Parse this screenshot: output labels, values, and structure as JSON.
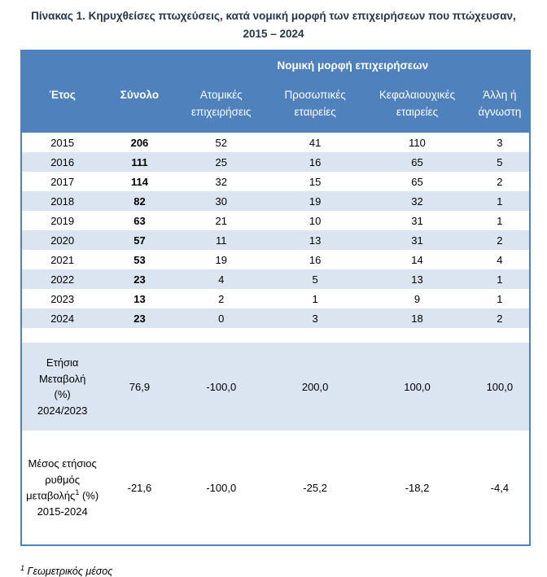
{
  "title": {
    "line1": "Πίνακας 1. Κηρυχθείσες πτωχεύσεις, κατά νομική μορφή των επιχειρήσεων που πτώχευσαν,",
    "line2": "2015 – 2024"
  },
  "colors": {
    "header_blue": "#4f81bd",
    "band_light_blue": "#dbe5f1",
    "border_blue": "#4f81bd",
    "title_text": "#253746"
  },
  "table": {
    "group_header": "Νομική μορφή επιχειρήσεων",
    "columns": [
      "Έτος",
      "Σύνολο",
      "Ατομικές επιχειρήσεις",
      "Προσωπικές εταιρείες",
      "Κεφαλαιουχικές εταιρείες",
      "Άλλη ή άγνωστη"
    ],
    "rows": [
      [
        "2015",
        "206",
        "52",
        "41",
        "110",
        "3"
      ],
      [
        "2016",
        "111",
        "25",
        "16",
        "65",
        "5"
      ],
      [
        "2017",
        "114",
        "32",
        "15",
        "65",
        "2"
      ],
      [
        "2018",
        "82",
        "30",
        "19",
        "32",
        "1"
      ],
      [
        "2019",
        "63",
        "21",
        "10",
        "31",
        "1"
      ],
      [
        "2020",
        "57",
        "11",
        "13",
        "31",
        "2"
      ],
      [
        "2021",
        "53",
        "19",
        "16",
        "14",
        "4"
      ],
      [
        "2022",
        "23",
        "4",
        "5",
        "13",
        "1"
      ],
      [
        "2023",
        "13",
        "2",
        "1",
        "9",
        "1"
      ],
      [
        "2024",
        "23",
        "0",
        "3",
        "18",
        "2"
      ]
    ],
    "annual_change": {
      "label_lines": [
        "Ετήσια",
        "Μεταβολή",
        "(%)",
        "2024/2023"
      ],
      "values": [
        "76,9",
        "-100,0",
        "200,0",
        "100,0",
        "100,0"
      ]
    },
    "avg_change": {
      "label_line1": "Μέσος ετήσιος",
      "label_line2": "ρυθμός",
      "label_line3_pre": "μεταβολής",
      "label_line3_sup": "1",
      "label_line3_post": " (%)",
      "label_line4": "2015-2024",
      "values": [
        "-21,6",
        "-100,0",
        "-25,2",
        "-18,2",
        "-4,4"
      ]
    }
  },
  "footnote": {
    "sup": "1",
    "text": " Γεωμετρικός μέσος"
  }
}
